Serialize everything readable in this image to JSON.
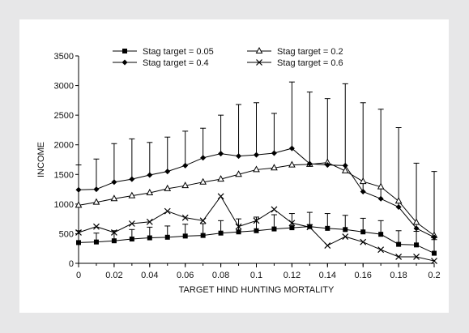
{
  "chart_data": {
    "type": "line",
    "xlabel": "TARGET HIND HUNTING MORTALITY",
    "ylabel": "INCOME",
    "xlim": [
      0,
      0.2
    ],
    "ylim": [
      0,
      3500
    ],
    "x": [
      0,
      0.01,
      0.02,
      0.03,
      0.04,
      0.05,
      0.06,
      0.07,
      0.08,
      0.09,
      0.1,
      0.11,
      0.12,
      0.13,
      0.14,
      0.15,
      0.16,
      0.17,
      0.18,
      0.19,
      0.2
    ],
    "x_ticks": [
      "0",
      "0.02",
      "0.04",
      "0.06",
      "0.08",
      "0.1",
      "0.12",
      "0.14",
      "0.16",
      "0.18",
      "0.2"
    ],
    "x_tick_values": [
      0,
      0.02,
      0.04,
      0.06,
      0.08,
      0.1,
      0.12,
      0.14,
      0.16,
      0.18,
      0.2
    ],
    "y_ticks": [
      "0",
      "500",
      "1000",
      "1500",
      "2000",
      "2500",
      "3000",
      "3500"
    ],
    "y_tick_values": [
      0,
      500,
      1000,
      1500,
      2000,
      2500,
      3000,
      3500
    ],
    "grid": false,
    "legend_position": "top",
    "series": [
      {
        "name": "Stag target = 0.05",
        "marker": "square",
        "values": [
          350,
          360,
          380,
          410,
          430,
          440,
          460,
          470,
          510,
          530,
          550,
          580,
          600,
          620,
          590,
          570,
          530,
          490,
          320,
          310,
          170
        ],
        "errors": [
          200,
          150,
          170,
          160,
          180,
          190,
          200,
          200,
          210,
          220,
          230,
          240,
          240,
          240,
          250,
          240,
          230,
          230,
          230,
          230,
          230
        ]
      },
      {
        "name": "Stag target = 0.2",
        "marker": "triangle",
        "values": [
          980,
          1030,
          1090,
          1140,
          1190,
          1260,
          1310,
          1370,
          1420,
          1500,
          1580,
          1610,
          1660,
          1670,
          1700,
          1560,
          1380,
          1290,
          1050,
          690,
          470
        ],
        "errors": []
      },
      {
        "name": "Stag target = 0.4",
        "marker": "diamond",
        "values": [
          1240,
          1250,
          1370,
          1420,
          1490,
          1550,
          1650,
          1780,
          1850,
          1810,
          1830,
          1860,
          1940,
          1680,
          1660,
          1650,
          1210,
          1090,
          950,
          590,
          440
        ],
        "errors": [
          420,
          510,
          650,
          680,
          550,
          580,
          580,
          500,
          650,
          870,
          880,
          670,
          1120,
          1210,
          1120,
          1380,
          1500,
          1510,
          1340,
          1100,
          1110
        ]
      },
      {
        "name": "Stag target = 0.6",
        "marker": "x",
        "values": [
          520,
          620,
          520,
          670,
          700,
          880,
          770,
          720,
          1130,
          620,
          720,
          910,
          680,
          610,
          300,
          450,
          360,
          230,
          110,
          110,
          40
        ],
        "errors": []
      }
    ]
  }
}
